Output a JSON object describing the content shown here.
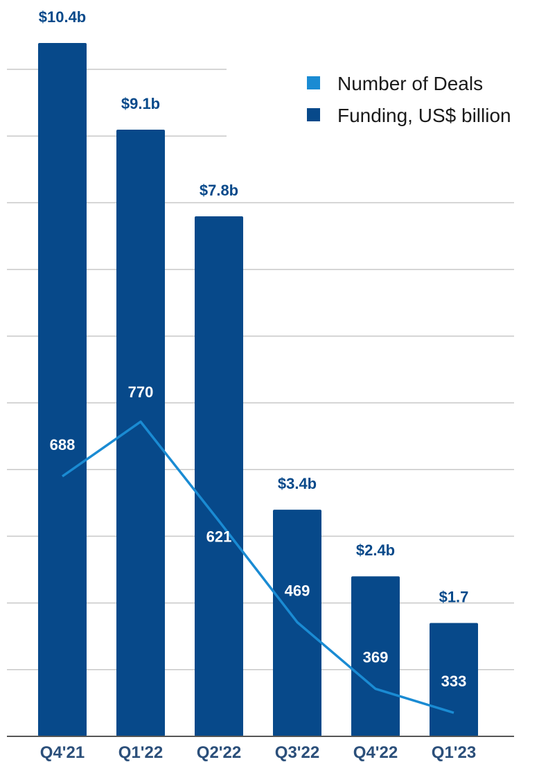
{
  "chart_data": {
    "type": "bar",
    "categories": [
      "Q4'21",
      "Q1'22",
      "Q2'22",
      "Q3'22",
      "Q4'22",
      "Q1'23"
    ],
    "series": [
      {
        "name": "Funding, US$ billion",
        "type": "bar",
        "values": [
          10.4,
          9.1,
          7.8,
          3.4,
          2.4,
          1.7
        ],
        "labels": [
          "$10.4b",
          "$9.1b",
          "$7.8b",
          "$3.4b",
          "$2.4b",
          "$1.7"
        ],
        "color": "#07498A"
      },
      {
        "name": "Number of Deals",
        "type": "line",
        "values": [
          688,
          770,
          621,
          469,
          369,
          333
        ],
        "labels": [
          "688",
          "770",
          "621",
          "469",
          "369",
          "333"
        ],
        "color": "#1A8BD3"
      }
    ],
    "legend": {
      "position": "top-right",
      "items": [
        {
          "label": "Number of Deals",
          "color": "#1A8BD3"
        },
        {
          "label": "Funding, US$ billion",
          "color": "#07498A"
        }
      ]
    },
    "funding_ylim": [
      0,
      11.4
    ],
    "deals_ylim": [
      300,
      1090
    ],
    "grid": true,
    "colors": {
      "bar_label": "#07498A",
      "tick_label": "#2B4F7A",
      "grid": "#C8C8C8",
      "axis": "#555555"
    }
  }
}
